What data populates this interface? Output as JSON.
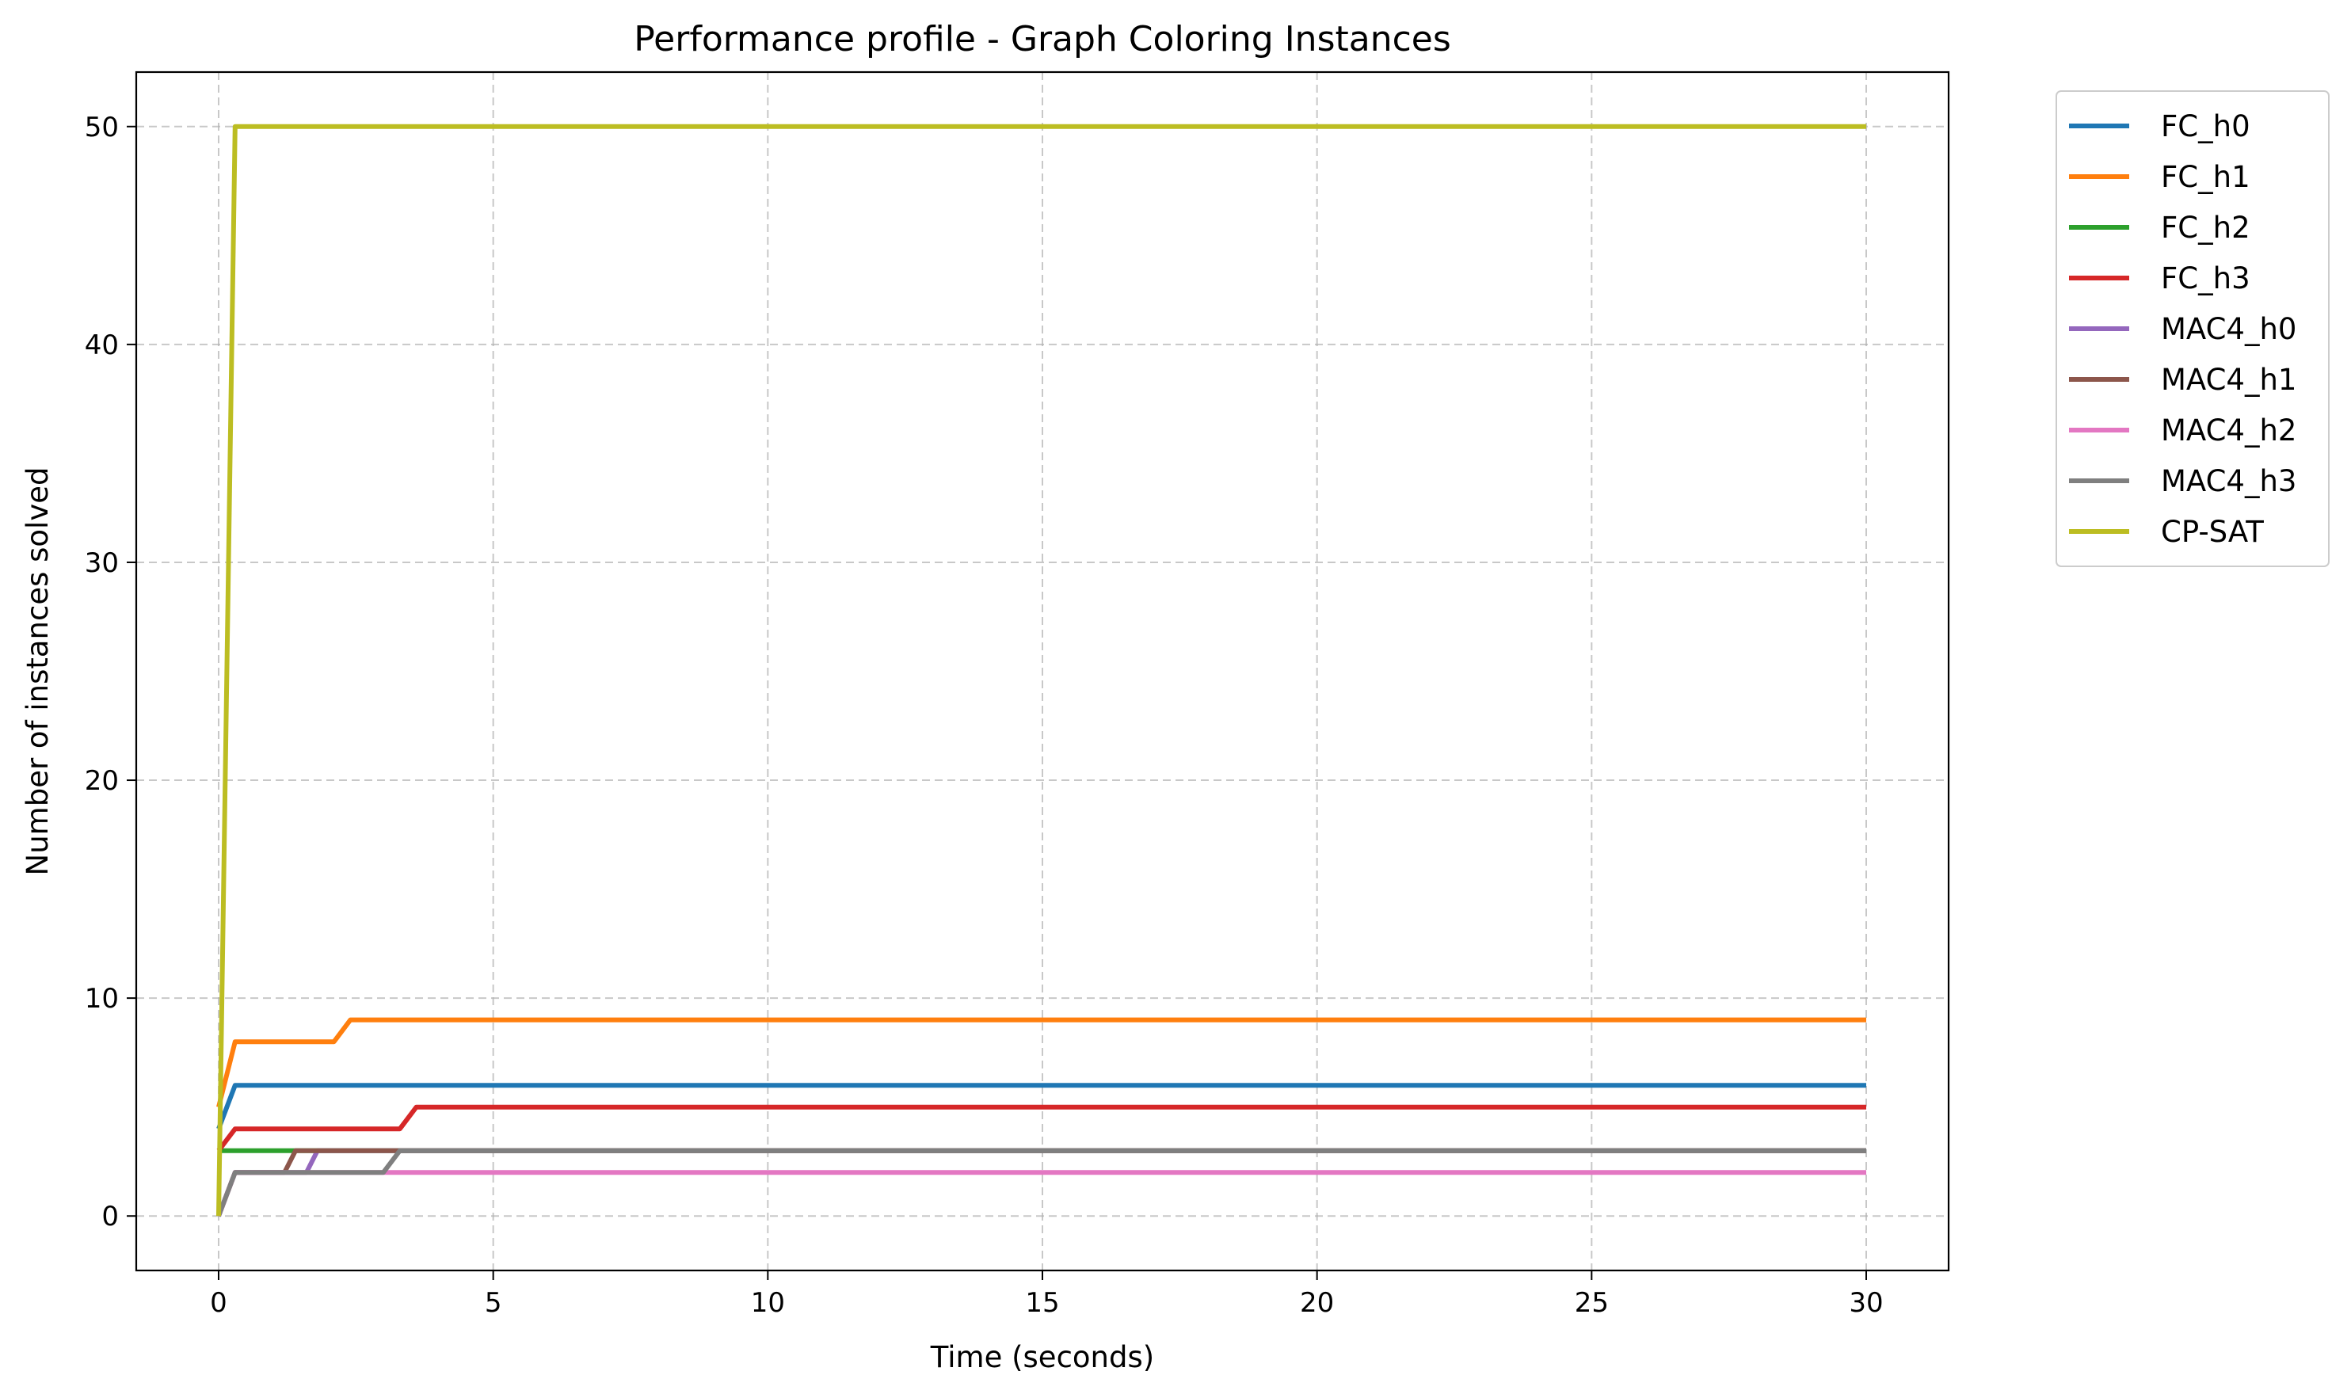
{
  "chart_data": {
    "type": "line",
    "title": "Performance profile - Graph Coloring Instances",
    "xlabel": "Time (seconds)",
    "ylabel": "Number of instances solved",
    "xlim": [
      -1.5,
      31.5
    ],
    "ylim": [
      -2.5,
      52.5
    ],
    "xticks": [
      0,
      5,
      10,
      15,
      20,
      25,
      30
    ],
    "yticks": [
      0,
      10,
      20,
      30,
      40,
      50
    ],
    "grid": true,
    "grid_style": "dashed",
    "legend_position": "outside-top-right",
    "series": [
      {
        "name": "FC_h0",
        "color": "#1f77b4",
        "points": [
          [
            0,
            4
          ],
          [
            0.3,
            6
          ],
          [
            30,
            6
          ]
        ]
      },
      {
        "name": "FC_h1",
        "color": "#ff7f0e",
        "points": [
          [
            0,
            5
          ],
          [
            0.3,
            8
          ],
          [
            2.1,
            8
          ],
          [
            2.4,
            9
          ],
          [
            30,
            9
          ]
        ]
      },
      {
        "name": "FC_h2",
        "color": "#2ca02c",
        "points": [
          [
            0,
            3
          ],
          [
            1.5,
            3
          ],
          [
            30,
            3
          ]
        ]
      },
      {
        "name": "FC_h3",
        "color": "#d62728",
        "points": [
          [
            0,
            3
          ],
          [
            0.3,
            4
          ],
          [
            3.3,
            4
          ],
          [
            3.6,
            5
          ],
          [
            30,
            5
          ]
        ]
      },
      {
        "name": "MAC4_h0",
        "color": "#9467bd",
        "points": [
          [
            0,
            0
          ],
          [
            0.3,
            2
          ],
          [
            1.6,
            2
          ],
          [
            1.8,
            3
          ],
          [
            30,
            3
          ]
        ]
      },
      {
        "name": "MAC4_h1",
        "color": "#8c564b",
        "points": [
          [
            0,
            0
          ],
          [
            0.3,
            2
          ],
          [
            1.2,
            2
          ],
          [
            1.4,
            3
          ],
          [
            30,
            3
          ]
        ]
      },
      {
        "name": "MAC4_h2",
        "color": "#e377c2",
        "points": [
          [
            0,
            0
          ],
          [
            0.3,
            2
          ],
          [
            30,
            2
          ]
        ]
      },
      {
        "name": "MAC4_h3",
        "color": "#7f7f7f",
        "points": [
          [
            0,
            0
          ],
          [
            0.3,
            2
          ],
          [
            3.0,
            2
          ],
          [
            3.3,
            3
          ],
          [
            30,
            3
          ]
        ]
      },
      {
        "name": "CP-SAT",
        "color": "#bcbd22",
        "points": [
          [
            0,
            0
          ],
          [
            0.3,
            50
          ],
          [
            30,
            50
          ]
        ]
      }
    ]
  }
}
